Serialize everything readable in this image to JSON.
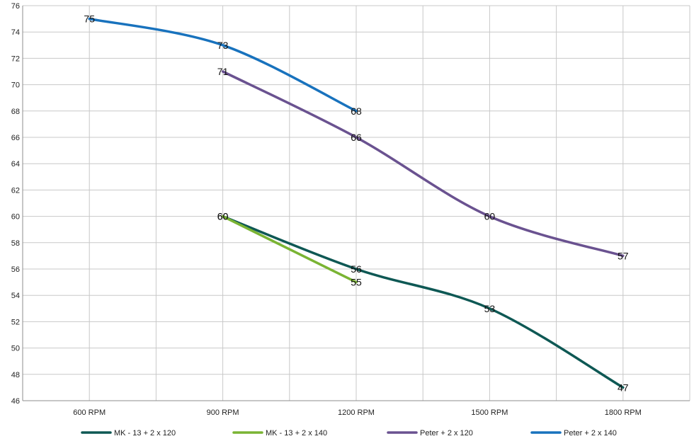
{
  "chart_data": {
    "type": "line",
    "title": "",
    "xlabel": "",
    "ylabel": "",
    "categories": [
      "600 RPM",
      "900 RPM",
      "1200 RPM",
      "1500 RPM",
      "1800 RPM"
    ],
    "ylim": [
      46,
      76
    ],
    "yticks": [
      46,
      48,
      50,
      52,
      54,
      56,
      58,
      60,
      62,
      64,
      66,
      68,
      70,
      72,
      74,
      76
    ],
    "grid": true,
    "legend_position": "bottom",
    "series": [
      {
        "name": "MK - 13 + 2 x 120",
        "color": "#0e5854",
        "values": [
          null,
          60,
          56,
          53,
          47
        ]
      },
      {
        "name": "MK - 13 + 2 x 140",
        "color": "#7ab433",
        "values": [
          null,
          60,
          55,
          null,
          null
        ]
      },
      {
        "name": "Peter + 2 x 120",
        "color": "#6a5290",
        "values": [
          null,
          71,
          66,
          60,
          57
        ]
      },
      {
        "name": "Peter + 2 x 140",
        "color": "#1872bd",
        "values": [
          75,
          73,
          68,
          null,
          null
        ]
      }
    ]
  }
}
